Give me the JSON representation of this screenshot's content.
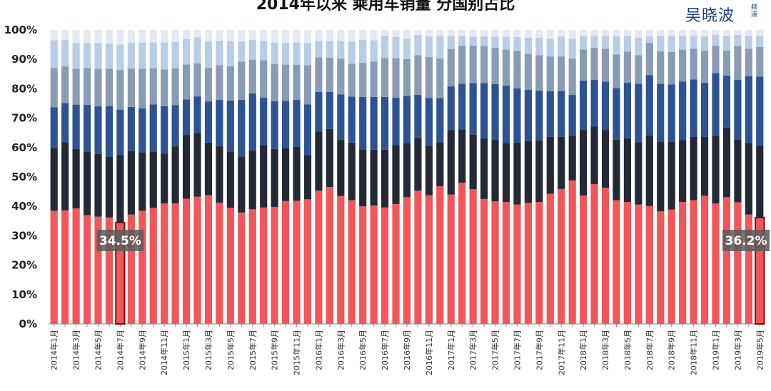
{
  "title": "2014年以来 乘用车销量 分国别占比",
  "logo": {
    "text": "吴晓波",
    "sub": "频道"
  },
  "colors": [
    "#f0565a",
    "#232a36",
    "#2d5393",
    "#8a9cb3",
    "#b9cde6",
    "#e3eaf3"
  ],
  "chart_data": {
    "type": "bar",
    "stacked": true,
    "title": "2014年以来 乘用车销量 分国别占比",
    "ylim": [
      0,
      100
    ],
    "yticks": [
      "0%",
      "10%",
      "20%",
      "30%",
      "40%",
      "50%",
      "60%",
      "70%",
      "80%",
      "90%",
      "100%"
    ],
    "grid": false,
    "categories": [
      "2014年1月",
      "2014年2月",
      "2014年3月",
      "2014年4月",
      "2014年5月",
      "2014年6月",
      "2014年7月",
      "2014年8月",
      "2014年9月",
      "2014年10月",
      "2014年11月",
      "2014年12月",
      "2015年1月",
      "2015年2月",
      "2015年3月",
      "2015年4月",
      "2015年5月",
      "2015年6月",
      "2015年7月",
      "2015年8月",
      "2015年9月",
      "2015年10月",
      "2015年11月",
      "2015年12月",
      "2016年1月",
      "2016年2月",
      "2016年3月",
      "2016年4月",
      "2016年5月",
      "2016年6月",
      "2016年7月",
      "2016年8月",
      "2016年9月",
      "2016年10月",
      "2016年11月",
      "2016年12月",
      "2017年1月",
      "2017年2月",
      "2017年3月",
      "2017年4月",
      "2017年5月",
      "2017年6月",
      "2017年7月",
      "2017年8月",
      "2017年9月",
      "2017年10月",
      "2017年11月",
      "2017年12月",
      "2018年1月",
      "2018年2月",
      "2018年3月",
      "2018年4月",
      "2018年5月",
      "2018年6月",
      "2018年7月",
      "2018年8月",
      "2018年9月",
      "2018年10月",
      "2018年11月",
      "2018年12月",
      "2019年1月",
      "2019年2月",
      "2019年3月",
      "2019年4月",
      "2019年5月"
    ],
    "xtick_labels_shown": [
      "2014年1月",
      "2014年3月",
      "2014年5月",
      "2014年7月",
      "2014年9月",
      "2014年11月",
      "2015年1月",
      "2015年3月",
      "2015年5月",
      "2015年7月",
      "2015年9月",
      "2015年11月",
      "2016年1月",
      "2016年3月",
      "2016年5月",
      "2016年7月",
      "2016年9月",
      "2016年11月",
      "2017年1月",
      "2017年3月",
      "2017年5月",
      "2017年7月",
      "2017年9月",
      "2017年11月",
      "2018年1月",
      "2018年3月",
      "2018年5月",
      "2018年7月",
      "2018年9月",
      "2018年11月",
      "2019年1月",
      "2019年3月",
      "2019年5月"
    ],
    "series": [
      {
        "values": [
          38.5,
          38.6,
          39.3,
          37.0,
          36.5,
          36.2,
          34.5,
          37.2,
          38.5,
          39.5,
          41.0,
          41.0,
          42.6,
          43.3,
          43.8,
          41.2,
          39.5,
          37.9,
          39.0,
          39.6,
          39.8,
          41.8,
          41.9,
          42.4,
          45.3,
          46.6,
          43.5,
          42.1,
          40.0,
          40.3,
          39.6,
          40.8,
          43.1,
          45.3,
          43.8,
          46.8,
          44.0,
          48.0,
          45.8,
          42.5,
          41.7,
          41.5,
          40.6,
          41.2,
          41.5,
          44.3,
          45.9,
          48.8,
          43.7,
          47.6,
          46.3,
          42.1,
          41.5,
          40.6,
          40.1,
          38.3,
          38.9,
          41.5,
          42.1,
          43.6,
          41.0,
          43.1,
          41.4,
          37.2,
          36.2
        ]
      },
      {
        "values": [
          21.4,
          23.2,
          20.2,
          21.6,
          21.3,
          20.6,
          22.9,
          21.6,
          19.9,
          19.0,
          16.9,
          19.4,
          21.7,
          21.7,
          17.9,
          19.3,
          19.0,
          19.1,
          20.0,
          21.3,
          19.7,
          17.9,
          18.3,
          15.0,
          20.2,
          19.7,
          19.1,
          19.6,
          19.4,
          19.0,
          19.7,
          20.0,
          18.3,
          18.0,
          16.8,
          15.0,
          21.9,
          18.2,
          18.6,
          20.6,
          20.9,
          20.0,
          21.1,
          21.1,
          20.9,
          19.3,
          17.7,
          15.2,
          22.3,
          19.6,
          19.7,
          20.6,
          21.6,
          21.2,
          24.0,
          23.6,
          23.0,
          21.0,
          21.5,
          20.0,
          23.0,
          23.7,
          21.4,
          24.4,
          24.5
        ]
      },
      {
        "values": [
          13.8,
          13.3,
          15.1,
          15.9,
          16.2,
          17.3,
          15.5,
          15.0,
          14.9,
          16.2,
          16.2,
          14.0,
          12.1,
          12.4,
          14.0,
          15.7,
          17.5,
          19.2,
          19.4,
          16.1,
          16.3,
          16.2,
          16.0,
          17.3,
          13.4,
          12.6,
          15.5,
          15.6,
          17.8,
          17.9,
          17.9,
          16.2,
          16.2,
          14.6,
          16.3,
          15.0,
          14.9,
          15.5,
          17.5,
          18.9,
          19.0,
          19.6,
          18.4,
          17.3,
          17.0,
          15.6,
          15.7,
          13.9,
          16.8,
          15.8,
          16.4,
          17.5,
          19.0,
          19.9,
          20.5,
          19.8,
          19.6,
          20.0,
          19.6,
          18.4,
          21.3,
          17.7,
          20.2,
          22.7,
          23.4
        ]
      },
      {
        "values": [
          13.4,
          12.5,
          12.2,
          12.6,
          12.8,
          12.7,
          13.5,
          13.1,
          13.5,
          12.3,
          12.5,
          12.5,
          11.9,
          11.2,
          11.5,
          11.8,
          11.7,
          13.0,
          11.5,
          12.7,
          12.6,
          12.3,
          12.0,
          13.3,
          11.8,
          11.6,
          12.2,
          11.2,
          11.6,
          12.0,
          13.2,
          13.4,
          12.5,
          13.5,
          13.9,
          13.5,
          12.7,
          13.0,
          12.8,
          12.5,
          12.4,
          12.2,
          12.8,
          12.3,
          12.0,
          11.8,
          11.7,
          12.4,
          10.6,
          11.0,
          11.2,
          11.5,
          10.5,
          9.7,
          11.0,
          11.0,
          11.0,
          10.8,
          10.4,
          11.0,
          9.3,
          8.5,
          11.5,
          9.3,
          10.1
        ]
      },
      {
        "values": [
          9.4,
          9.0,
          8.8,
          8.5,
          8.7,
          8.6,
          8.6,
          8.8,
          8.9,
          8.8,
          9.2,
          9.0,
          8.6,
          8.9,
          8.9,
          8.4,
          8.5,
          6.9,
          6.8,
          6.6,
          7.3,
          7.3,
          7.5,
          7.6,
          5.6,
          5.8,
          6.0,
          7.6,
          7.8,
          7.3,
          7.7,
          7.2,
          6.9,
          6.9,
          7.0,
          7.6,
          4.5,
          3.3,
          3.0,
          3.3,
          3.7,
          4.4,
          4.7,
          5.5,
          6.0,
          6.0,
          6.8,
          6.8,
          4.5,
          4.0,
          4.4,
          6.1,
          5.4,
          6.0,
          2.2,
          5.4,
          5.5,
          4.8,
          4.5,
          4.8,
          3.8,
          5.0,
          3.8,
          4.4,
          3.8
        ]
      },
      {
        "values": [
          3.5,
          3.4,
          4.4,
          4.4,
          4.5,
          4.6,
          5.0,
          4.3,
          4.3,
          4.2,
          4.2,
          4.1,
          3.1,
          2.5,
          3.9,
          3.6,
          3.8,
          3.9,
          3.3,
          3.7,
          4.3,
          4.5,
          4.3,
          4.4,
          3.7,
          3.7,
          3.7,
          3.9,
          3.4,
          3.5,
          1.9,
          2.4,
          3.0,
          1.7,
          2.2,
          2.1,
          2.0,
          2.0,
          2.3,
          2.2,
          2.3,
          2.3,
          2.4,
          2.6,
          2.6,
          3.0,
          2.2,
          2.9,
          2.1,
          2.0,
          2.0,
          2.2,
          2.0,
          2.6,
          2.2,
          1.9,
          2.0,
          1.9,
          1.9,
          2.2,
          1.6,
          2.0,
          1.7,
          2.0,
          2.0
        ]
      }
    ],
    "highlights": [
      {
        "category": "2014年7月",
        "label": "34.5%"
      },
      {
        "category": "2019年5月",
        "label": "36.2%"
      }
    ]
  }
}
